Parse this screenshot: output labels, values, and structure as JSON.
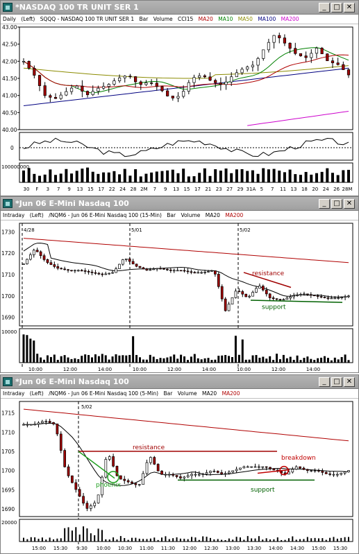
{
  "windows": [
    {
      "title": "*NASDAQ 100 TR UNIT SER 1",
      "info": {
        "interval": "Daily",
        "scale": "(Left)",
        "symbol_desc": "SQQQ - NASDAQ 100 TR UNIT SER 1",
        "bar_type": "Bar",
        "volume": "Volume",
        "indicator": "CCI15",
        "ma_labels": [
          "MA20",
          "MA10",
          "MA50",
          "MA100",
          "MA200"
        ]
      },
      "y_ticks": [
        "43.00",
        "42.50",
        "42.00",
        "41.50",
        "41.00",
        "40.50",
        "40.00"
      ],
      "cci_zero": "0",
      "volume_label": "100000000",
      "x_ticks": [
        "30",
        "F",
        "3",
        "7",
        "9",
        "13",
        "15",
        "17",
        "22",
        "24",
        "28",
        "2M",
        "7",
        "9",
        "13",
        "15",
        "17",
        "21",
        "23",
        "27",
        "29",
        "31A",
        "5",
        "7",
        "11",
        "13",
        "18",
        "20",
        "24",
        "26",
        "28M"
      ]
    },
    {
      "title": "*Jun 06  E-Mini Nasdaq 100",
      "info": {
        "interval": "Intraday",
        "scale": "(Left)",
        "symbol_desc": "/NQM6 - Jun 06  E-Mini Nasdaq 100 (15-Min)",
        "bar_type": "Bar",
        "volume": "Volume",
        "ma_labels": [
          "MA20",
          "MA200"
        ]
      },
      "y_ticks": [
        "1730",
        "1720",
        "1710",
        "1700",
        "1690"
      ],
      "date_markers": [
        "4/28",
        "5/01",
        "5/02"
      ],
      "volume_label": "10000",
      "x_ticks": [
        "10:00",
        "12:00",
        "14:00",
        "10:00",
        "12:00",
        "14:00",
        "10:00",
        "12:00",
        "14:00"
      ],
      "annotations": {
        "resistance": "resistance",
        "support": "support"
      }
    },
    {
      "title": "*Jun 06  E-Mini Nasdaq 100",
      "info": {
        "interval": "Intraday",
        "scale": "(Left)",
        "symbol_desc": "/NQM6 - Jun 06  E-Mini Nasdaq 100 (5-Min)",
        "bar_type": "Bar",
        "volume": "Volume",
        "ma_labels": [
          "MA20",
          "MA200"
        ]
      },
      "y_ticks": [
        "1715",
        "1710",
        "1705",
        "1700",
        "1695",
        "1690"
      ],
      "date_markers": [
        "5/02"
      ],
      "volume_label": "20000",
      "x_ticks": [
        "15:00",
        "15:30",
        "9:30",
        "10:00",
        "10:30",
        "11:00",
        "11:30",
        "12:00",
        "12:30",
        "13:00",
        "13:30",
        "14:00",
        "14:30",
        "15:00",
        "15:30"
      ],
      "annotations": {
        "resistance": "resistance",
        "phoenix": "phoenix",
        "breakdown": "breakdown",
        "support": "support"
      }
    }
  ],
  "colors": {
    "ma20": "#b00000",
    "ma10": "#008000",
    "ma50": "#8b8b00",
    "ma100": "#000080",
    "ma200": "#cc00cc",
    "candle_up": "#ffffff",
    "candle_down": "#a00000",
    "resistance": "#a00000",
    "support": "#006000",
    "phoenix": "#1e9e1e",
    "breakdown": "#c00000"
  }
}
